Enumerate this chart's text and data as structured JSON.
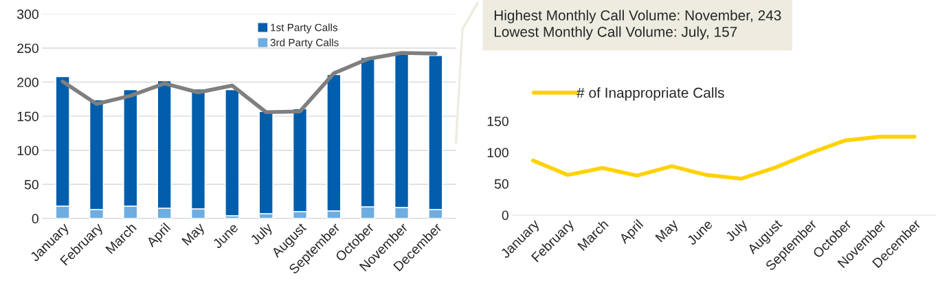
{
  "chart_data": [
    {
      "type": "bar",
      "stacked": true,
      "categories": [
        "January",
        "February",
        "March",
        "April",
        "May",
        "June",
        "July",
        "August",
        "September",
        "October",
        "November",
        "December"
      ],
      "series": [
        {
          "name": "3rd Party Calls",
          "color": "#6fade0",
          "values": [
            18,
            13,
            18,
            15,
            14,
            4,
            7,
            10,
            11,
            17,
            16,
            13
          ]
        },
        {
          "name": "1st Party Calls",
          "color": "#005eac",
          "values": [
            190,
            161,
            171,
            187,
            176,
            185,
            150,
            151,
            200,
            219,
            227,
            226
          ]
        },
        {
          "type": "line",
          "color": "#7f7f7f",
          "values": [
            201,
            168,
            180,
            198,
            185,
            195,
            156,
            157,
            213,
            234,
            243,
            242
          ]
        }
      ],
      "ylim": [
        0,
        300
      ],
      "yticks": [
        0,
        50,
        100,
        150,
        200,
        250,
        300
      ],
      "grid": "y",
      "legend": "top"
    },
    {
      "type": "line",
      "categories": [
        "January",
        "February",
        "March",
        "April",
        "May",
        "June",
        "July",
        "August",
        "September",
        "October",
        "November",
        "December"
      ],
      "series": [
        {
          "name": "# of Inappropriate Calls",
          "color": "#ffd200",
          "values": [
            87,
            64,
            75,
            63,
            78,
            64,
            58,
            76,
            99,
            119,
            125,
            125
          ]
        }
      ],
      "ylim": [
        0,
        150
      ],
      "yticks": [
        0,
        50,
        100,
        150
      ],
      "legend": "top left",
      "annotations": [
        "Highest Monthly Call Volume: November, 243\nLowest Monthly Call Volume: July, 157"
      ]
    }
  ]
}
